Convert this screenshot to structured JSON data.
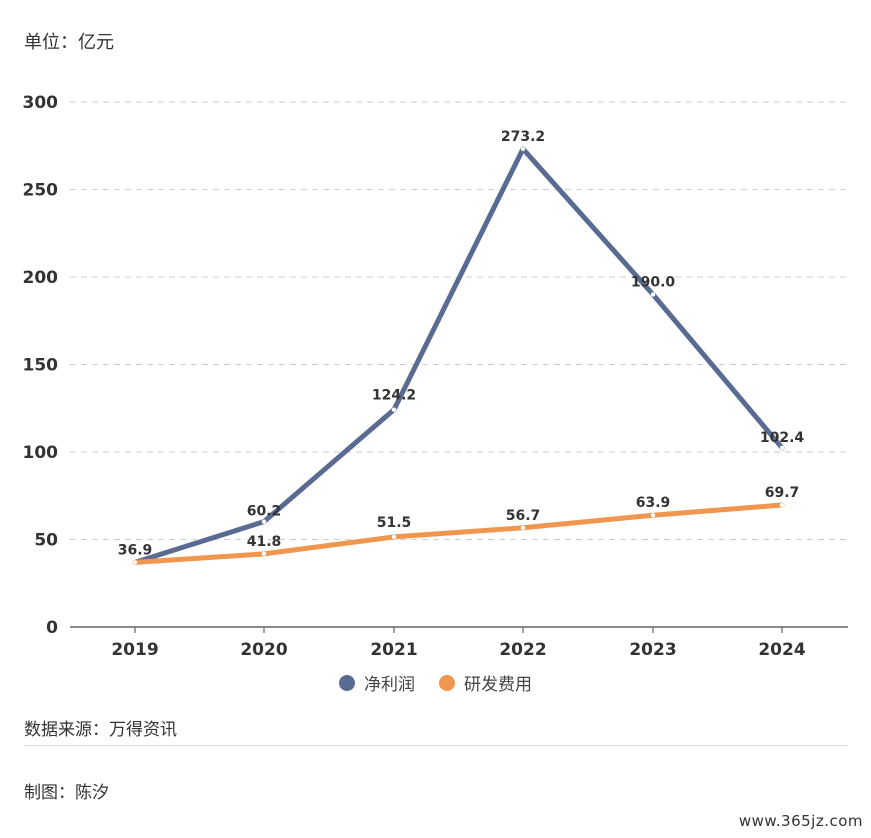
{
  "unit_label": "单位：亿元",
  "source_label": "数据来源：万得资讯",
  "author_label": "制图：陈汐",
  "watermark": "www.365jz.com",
  "colors": {
    "net_profit": "#5a6b93",
    "rd_expense": "#f0964e",
    "grid": "#cfcfcf",
    "axis": "#666666"
  },
  "chart_data": {
    "type": "line",
    "categories": [
      "2019",
      "2020",
      "2021",
      "2022",
      "2023",
      "2024"
    ],
    "ylim": [
      0,
      300
    ],
    "yticks": [
      0,
      50,
      100,
      150,
      200,
      250,
      300
    ],
    "grid": true,
    "legend_position": "bottom",
    "series": [
      {
        "name": "净利润",
        "values": [
          36.9,
          60.2,
          124.2,
          273.2,
          190.0,
          102.4
        ],
        "labels": [
          "36.9",
          "60.2",
          "124.2",
          "273.2",
          "190.0",
          "102.4"
        ]
      },
      {
        "name": "研发费用",
        "values": [
          36.9,
          41.8,
          51.5,
          56.7,
          63.9,
          69.7
        ],
        "labels": [
          "",
          "41.8",
          "51.5",
          "56.7",
          "63.9",
          "69.7"
        ]
      }
    ]
  }
}
